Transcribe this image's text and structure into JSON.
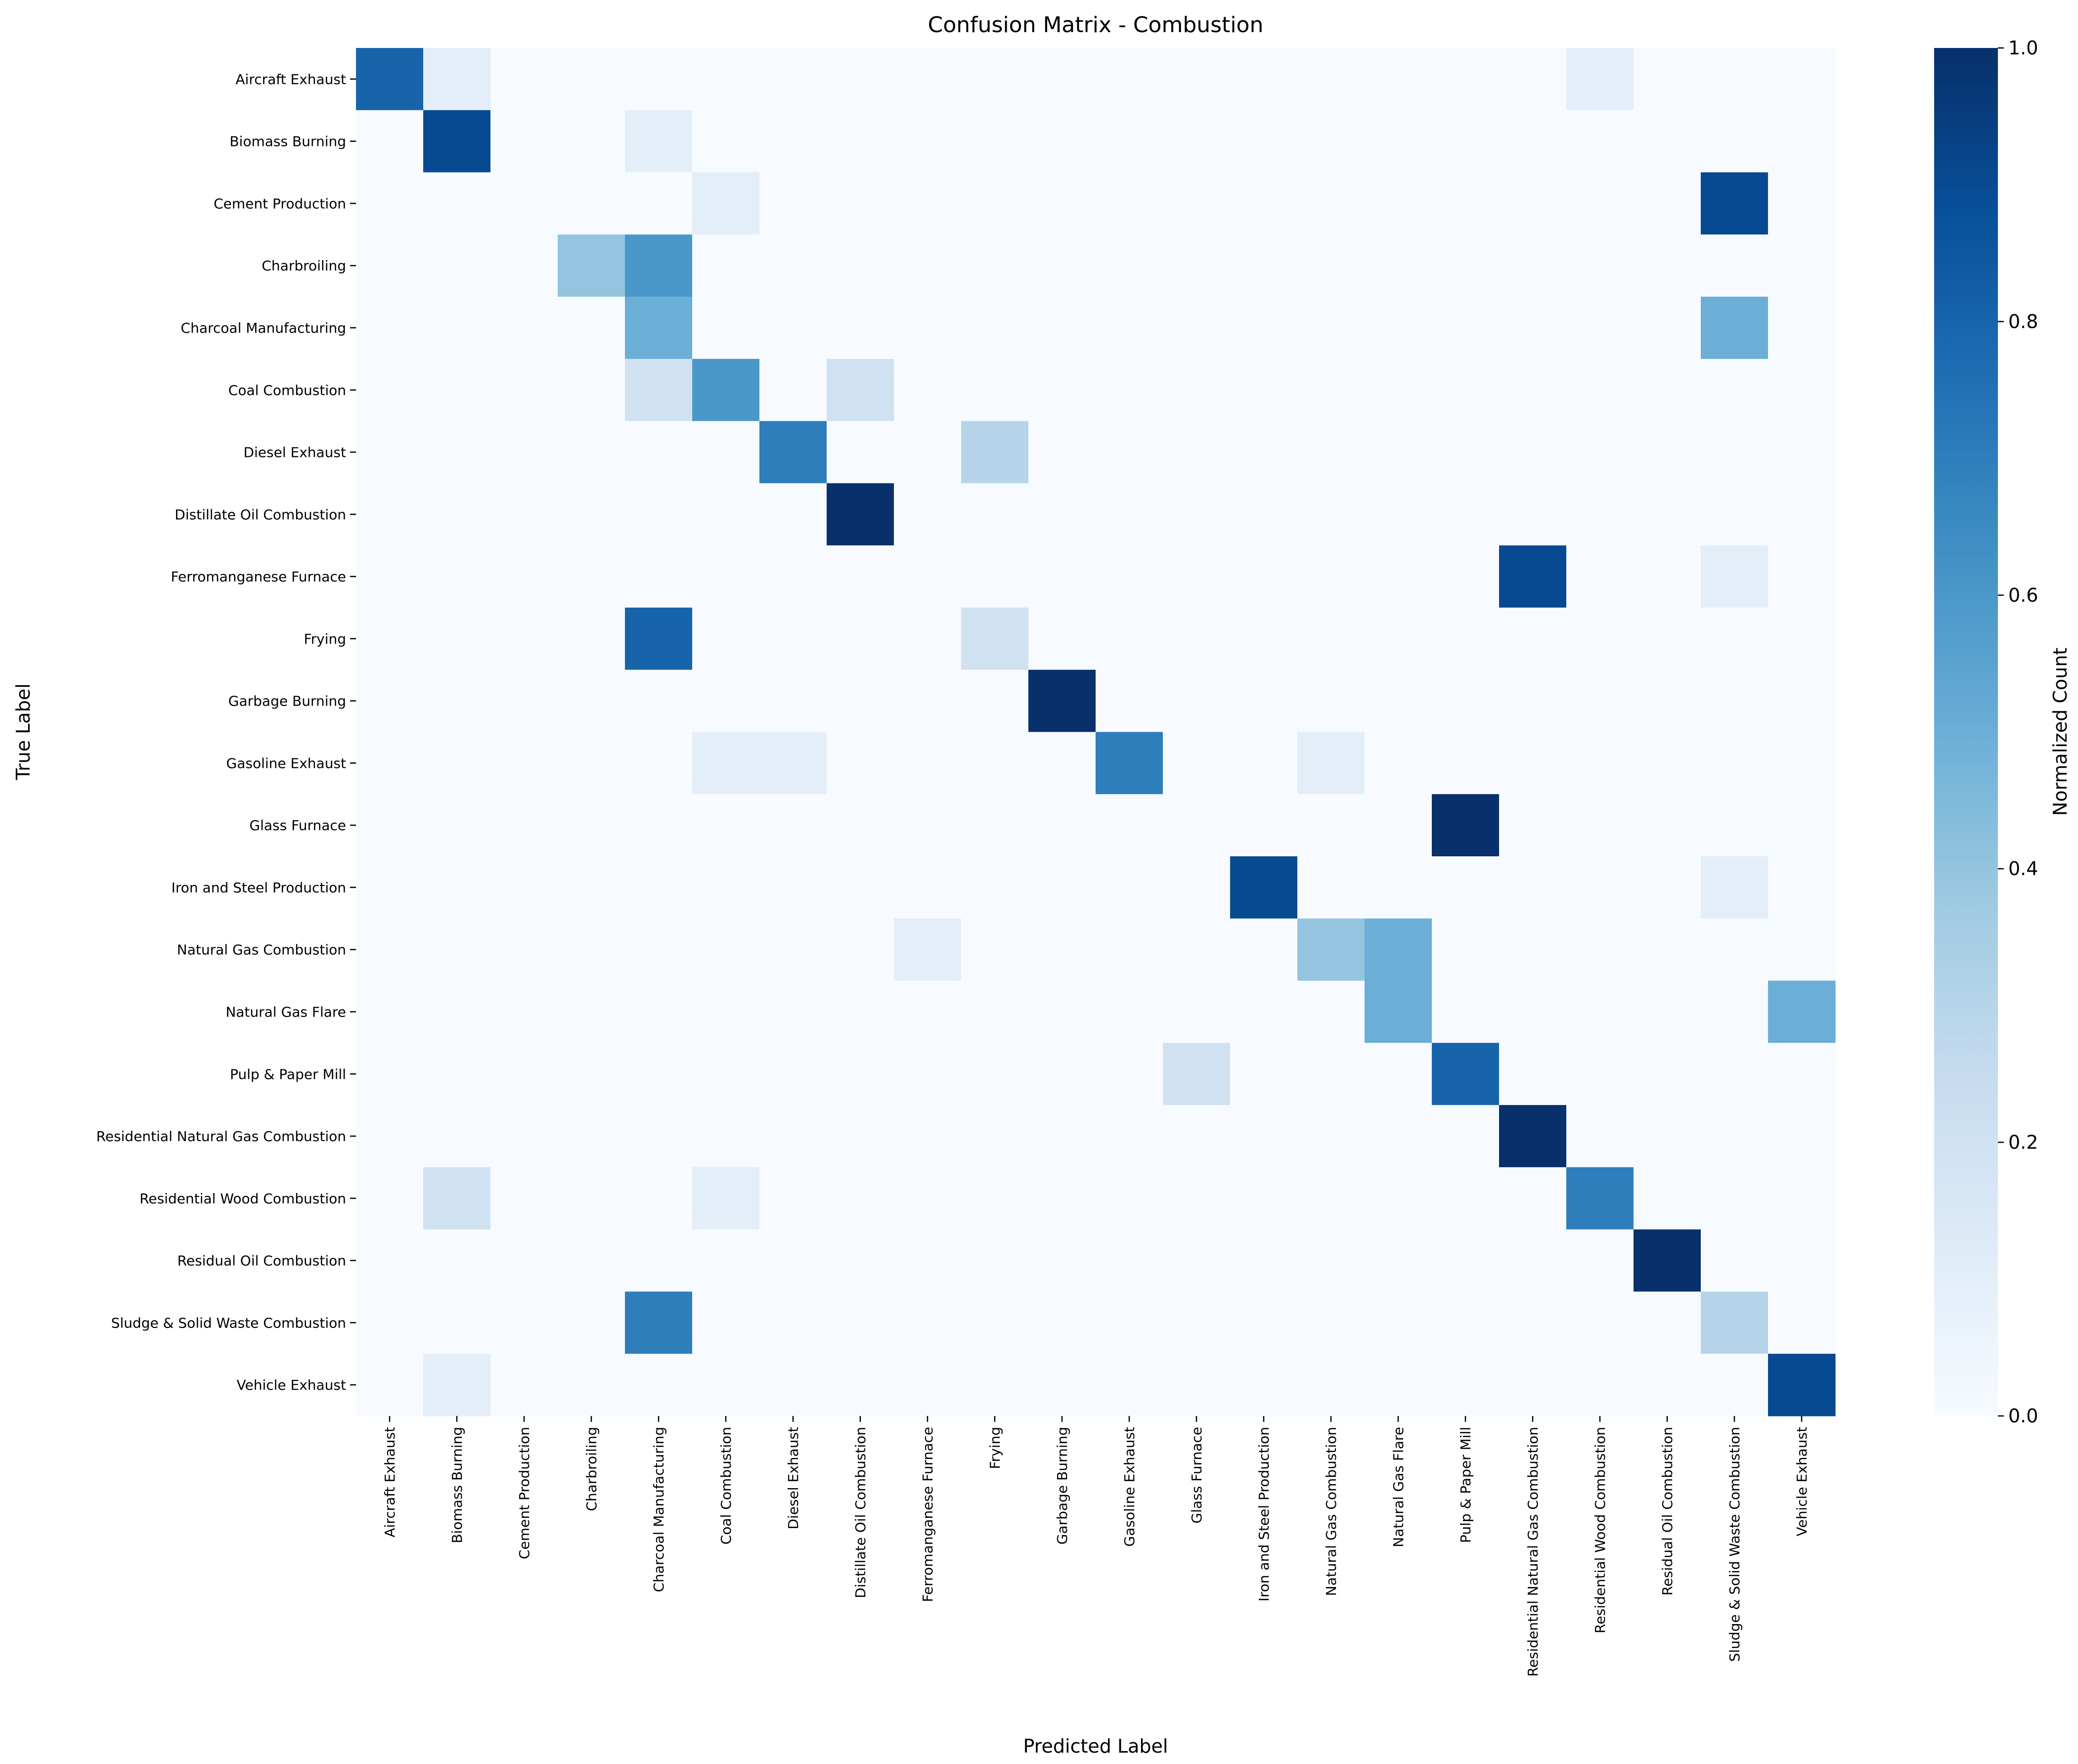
{
  "chart_data": {
    "type": "heatmap",
    "title": "Confusion Matrix - Combustion",
    "xlabel": "Predicted Label",
    "ylabel": "True Label",
    "colorbar_label": "Normalized Count",
    "colormap": "Blues",
    "vmin": 0.0,
    "vmax": 1.0,
    "colorbar_ticks": [
      "0.0",
      "0.2",
      "0.4",
      "0.6",
      "0.8",
      "1.0"
    ],
    "labels": [
      "Aircraft Exhaust",
      "Biomass Burning",
      "Cement Production",
      "Charbroiling",
      "Charcoal Manufacturing",
      "Coal Combustion",
      "Diesel Exhaust",
      "Distillate Oil Combustion",
      "Ferromanganese Furnace",
      "Frying",
      "Garbage Burning",
      "Gasoline Exhaust",
      "Glass Furnace",
      "Iron and Steel Production",
      "Natural Gas Combustion",
      "Natural Gas Flare",
      "Pulp & Paper Mill",
      "Residential Natural Gas Combustion",
      "Residential Wood Combustion",
      "Residual Oil Combustion",
      "Sludge & Solid Waste Combustion",
      "Vehicle Exhaust"
    ],
    "nonzero_cells": [
      {
        "true": 0,
        "pred": 0,
        "value": 0.8
      },
      {
        "true": 0,
        "pred": 1,
        "value": 0.1
      },
      {
        "true": 0,
        "pred": 18,
        "value": 0.1
      },
      {
        "true": 1,
        "pred": 1,
        "value": 0.9
      },
      {
        "true": 1,
        "pred": 4,
        "value": 0.1
      },
      {
        "true": 2,
        "pred": 5,
        "value": 0.1
      },
      {
        "true": 2,
        "pred": 20,
        "value": 0.9
      },
      {
        "true": 3,
        "pred": 3,
        "value": 0.4
      },
      {
        "true": 3,
        "pred": 4,
        "value": 0.6
      },
      {
        "true": 4,
        "pred": 4,
        "value": 0.5
      },
      {
        "true": 4,
        "pred": 20,
        "value": 0.5
      },
      {
        "true": 5,
        "pred": 4,
        "value": 0.2
      },
      {
        "true": 5,
        "pred": 5,
        "value": 0.6
      },
      {
        "true": 5,
        "pred": 7,
        "value": 0.2
      },
      {
        "true": 6,
        "pred": 6,
        "value": 0.7
      },
      {
        "true": 6,
        "pred": 9,
        "value": 0.3
      },
      {
        "true": 7,
        "pred": 7,
        "value": 1.0
      },
      {
        "true": 8,
        "pred": 17,
        "value": 0.9
      },
      {
        "true": 8,
        "pred": 20,
        "value": 0.1
      },
      {
        "true": 9,
        "pred": 4,
        "value": 0.8
      },
      {
        "true": 9,
        "pred": 9,
        "value": 0.2
      },
      {
        "true": 10,
        "pred": 10,
        "value": 1.0
      },
      {
        "true": 11,
        "pred": 5,
        "value": 0.1
      },
      {
        "true": 11,
        "pred": 6,
        "value": 0.1
      },
      {
        "true": 11,
        "pred": 11,
        "value": 0.7
      },
      {
        "true": 11,
        "pred": 14,
        "value": 0.1
      },
      {
        "true": 12,
        "pred": 16,
        "value": 1.0
      },
      {
        "true": 13,
        "pred": 13,
        "value": 0.9
      },
      {
        "true": 13,
        "pred": 20,
        "value": 0.1
      },
      {
        "true": 14,
        "pred": 8,
        "value": 0.1
      },
      {
        "true": 14,
        "pred": 14,
        "value": 0.4
      },
      {
        "true": 14,
        "pred": 15,
        "value": 0.5
      },
      {
        "true": 15,
        "pred": 15,
        "value": 0.5
      },
      {
        "true": 15,
        "pred": 21,
        "value": 0.5
      },
      {
        "true": 16,
        "pred": 12,
        "value": 0.2
      },
      {
        "true": 16,
        "pred": 16,
        "value": 0.8
      },
      {
        "true": 17,
        "pred": 17,
        "value": 1.0
      },
      {
        "true": 18,
        "pred": 1,
        "value": 0.2
      },
      {
        "true": 18,
        "pred": 5,
        "value": 0.1
      },
      {
        "true": 18,
        "pred": 18,
        "value": 0.7
      },
      {
        "true": 19,
        "pred": 19,
        "value": 1.0
      },
      {
        "true": 20,
        "pred": 4,
        "value": 0.7
      },
      {
        "true": 20,
        "pred": 20,
        "value": 0.3
      },
      {
        "true": 21,
        "pred": 1,
        "value": 0.1
      },
      {
        "true": 21,
        "pred": 21,
        "value": 0.9
      }
    ]
  }
}
